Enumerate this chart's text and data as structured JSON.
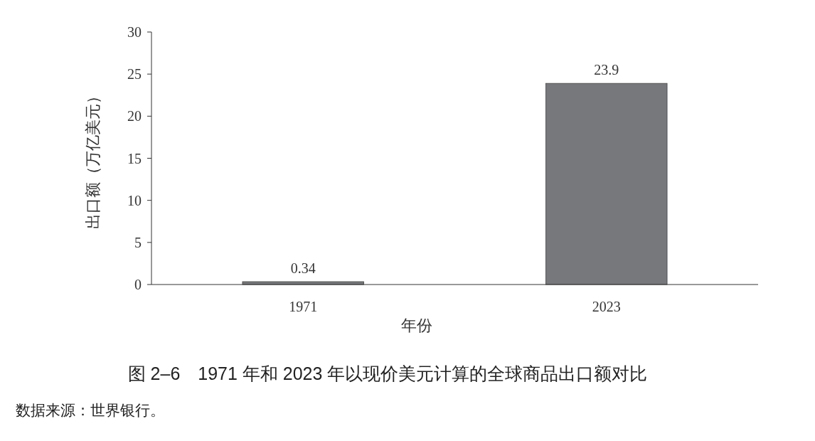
{
  "chart_data": {
    "type": "bar",
    "title": "图 2–6　1971 年和 2023 年以现价美元计算的全球商品出口额对比",
    "xlabel": "年份",
    "ylabel": "出口额（万亿美元）",
    "categories": [
      "1971",
      "2023"
    ],
    "values": [
      0.34,
      23.9
    ],
    "color": "#77787b",
    "ylim": [
      0,
      30
    ],
    "yticks": [
      0,
      5,
      10,
      15,
      20,
      25,
      30
    ],
    "data_labels": true,
    "annotations": [
      "数据来源：世界银行。"
    ]
  }
}
